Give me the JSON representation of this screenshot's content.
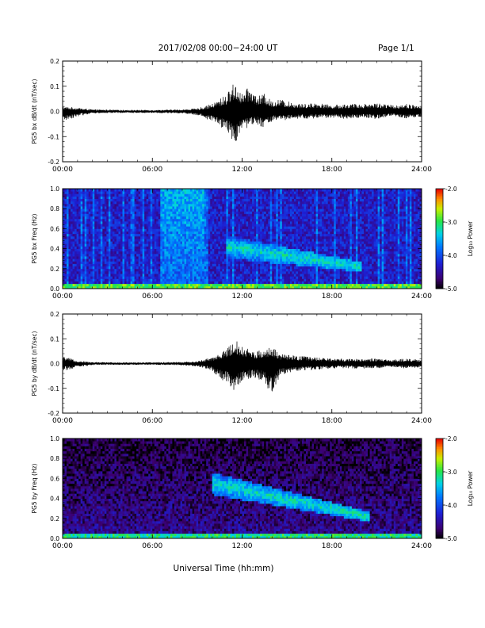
{
  "header": {
    "title": "2017/02/08  00:00−24:00 UT",
    "page": "Page 1/1"
  },
  "footer": {
    "xlabel": "Universal Time (hh:mm)"
  },
  "colors": {
    "trace": "#000000",
    "background": "#ffffff"
  },
  "chart_data": [
    {
      "type": "line",
      "ylabel": "PG5 bx dB/dt (nT/sec)",
      "xlim": [
        0,
        24
      ],
      "ylim": [
        -0.2,
        0.2
      ],
      "xticks": [
        "00:00",
        "06:00",
        "12:00",
        "18:00",
        "24:00"
      ],
      "yticks": [
        "-0.2",
        "-0.1",
        "0.0",
        "0.1",
        "0.2"
      ],
      "envelope": {
        "x": [
          0,
          1,
          2,
          4,
          6,
          8,
          9,
          10,
          10.5,
          11,
          11.5,
          12,
          12.5,
          13,
          13.5,
          14,
          14.5,
          15,
          16,
          17,
          18,
          19,
          20,
          21,
          22,
          23,
          24
        ],
        "upper": [
          0.02,
          0.015,
          0.008,
          0.006,
          0.006,
          0.008,
          0.012,
          0.03,
          0.05,
          0.07,
          0.12,
          0.07,
          0.1,
          0.06,
          0.07,
          0.04,
          0.05,
          0.04,
          0.03,
          0.035,
          0.025,
          0.03,
          0.03,
          0.035,
          0.025,
          0.03,
          0.02
        ],
        "lower": [
          -0.04,
          -0.02,
          -0.008,
          -0.006,
          -0.006,
          -0.008,
          -0.015,
          -0.04,
          -0.06,
          -0.08,
          -0.13,
          -0.08,
          -0.06,
          -0.05,
          -0.07,
          -0.04,
          -0.04,
          -0.035,
          -0.03,
          -0.03,
          -0.025,
          -0.03,
          -0.025,
          -0.03,
          -0.02,
          -0.03,
          -0.02
        ]
      }
    },
    {
      "type": "heatmap",
      "ylabel": "PG5 bx Freq (Hz)",
      "xlim": [
        0,
        24
      ],
      "ylim": [
        0,
        1.0
      ],
      "xticks": [
        "00:00",
        "06:00",
        "12:00",
        "18:00",
        "24:00"
      ],
      "yticks": [
        "0.0",
        "0.2",
        "0.4",
        "0.6",
        "0.8",
        "1.0"
      ],
      "colorbar": {
        "label": "Log₁₀ Power",
        "range": [
          -5.0,
          -2.0
        ],
        "ticks": [
          "-2.0",
          "-3.0",
          "-4.0",
          "-5.0"
        ]
      },
      "features": [
        {
          "name": "broadband burst",
          "t_start": 6.5,
          "t_end": 9.5,
          "f_low": 0.0,
          "f_high": 1.0,
          "log_power": -3.2
        },
        {
          "name": "Pc1 band",
          "t_start": 11.0,
          "t_end": 20.0,
          "f_start": 0.42,
          "f_end": 0.22,
          "log_power": -3.0
        },
        {
          "name": "low-frequency band",
          "t_start": 0,
          "t_end": 24,
          "f_low": 0.0,
          "f_high": 0.05,
          "log_power": -2.6
        }
      ]
    },
    {
      "type": "line",
      "ylabel": "PG5 by dB/dt (nT/sec)",
      "xlim": [
        0,
        24
      ],
      "ylim": [
        -0.2,
        0.2
      ],
      "xticks": [
        "00:00",
        "06:00",
        "12:00",
        "18:00",
        "24:00"
      ],
      "yticks": [
        "-0.2",
        "-0.1",
        "0.0",
        "0.1",
        "0.2"
      ],
      "envelope": {
        "x": [
          0,
          1,
          2,
          4,
          6,
          8,
          9,
          10,
          10.5,
          11,
          11.5,
          12,
          12.5,
          13,
          13.5,
          14,
          14.5,
          15,
          16,
          17,
          18,
          19,
          20,
          21,
          22,
          23,
          24
        ],
        "upper": [
          0.03,
          0.012,
          0.006,
          0.005,
          0.005,
          0.007,
          0.01,
          0.025,
          0.04,
          0.06,
          0.1,
          0.07,
          0.06,
          0.05,
          0.06,
          0.07,
          0.04,
          0.035,
          0.03,
          0.025,
          0.02,
          0.02,
          0.02,
          0.02,
          0.015,
          0.02,
          0.015
        ],
        "lower": [
          -0.03,
          -0.015,
          -0.006,
          -0.005,
          -0.005,
          -0.007,
          -0.012,
          -0.03,
          -0.06,
          -0.08,
          -0.12,
          -0.07,
          -0.06,
          -0.06,
          -0.08,
          -0.14,
          -0.05,
          -0.04,
          -0.03,
          -0.025,
          -0.02,
          -0.02,
          -0.02,
          -0.02,
          -0.015,
          -0.02,
          -0.015
        ]
      }
    },
    {
      "type": "heatmap",
      "ylabel": "PG5 by Freq (Hz)",
      "xlim": [
        0,
        24
      ],
      "ylim": [
        0,
        1.0
      ],
      "xticks": [
        "00:00",
        "06:00",
        "12:00",
        "18:00",
        "24:00"
      ],
      "yticks": [
        "0.0",
        "0.2",
        "0.4",
        "0.6",
        "0.8",
        "1.0"
      ],
      "colorbar": {
        "label": "Log₁₀ Power",
        "range": [
          -5.0,
          -2.0
        ],
        "ticks": [
          "-2.0",
          "-3.0",
          "-4.0",
          "-5.0"
        ]
      },
      "features": [
        {
          "name": "Pc1 band",
          "t_start": 10.0,
          "t_end": 20.5,
          "f_start": 0.55,
          "f_end": 0.22,
          "log_power": -3.0
        },
        {
          "name": "low-frequency band",
          "t_start": 0,
          "t_end": 24,
          "f_low": 0.0,
          "f_high": 0.05,
          "log_power": -2.8
        }
      ]
    }
  ]
}
